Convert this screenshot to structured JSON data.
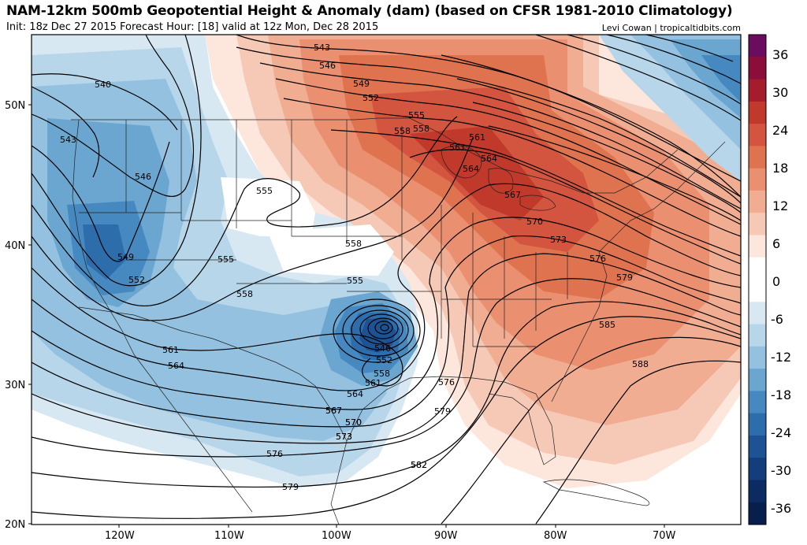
{
  "header": {
    "title": "NAM-12km 500mb Geopotential Height & Anomaly (dam) (based on CFSR 1981-2010 Climatology)",
    "subtitle": "Init: 18z Dec 27 2015   Forecast Hour: [18]   valid at 12z Mon, Dec 28 2015",
    "credit": "Levi Cowan | tropicaltidbits.com"
  },
  "axes": {
    "lon_labels": [
      "120W",
      "110W",
      "100W",
      "90W",
      "80W",
      "70W"
    ],
    "lat_labels": [
      "50N",
      "40N",
      "30N",
      "20N"
    ]
  },
  "colorbar": {
    "labels": [
      "36",
      "30",
      "24",
      "18",
      "12",
      "6",
      "0",
      "-6",
      "-12",
      "-18",
      "-24",
      "-30",
      "-36"
    ],
    "colors": [
      "#6a0d5e",
      "#8b0e3a",
      "#a51d2d",
      "#c0392b",
      "#d3543f",
      "#e0734f",
      "#ea9070",
      "#f1ad92",
      "#f6c9b6",
      "#fde6dc",
      "#ffffff",
      "#ffffff",
      "#d7e8f3",
      "#b7d6ea",
      "#93c1df",
      "#6aa6d0",
      "#4689c0",
      "#2e6dac",
      "#1d5395",
      "#143d7c",
      "#0c2b62",
      "#081f4b"
    ]
  },
  "contour_labels": [
    "540",
    "543",
    "546",
    "549",
    "552",
    "555",
    "558",
    "561",
    "564",
    "567",
    "570",
    "573",
    "576",
    "579",
    "582",
    "585",
    "588",
    "543",
    "546",
    "549",
    "552",
    "555",
    "558",
    "561",
    "564",
    "567",
    "570",
    "573",
    "576",
    "579",
    "555",
    "558",
    "546",
    "552",
    "558",
    "561",
    "564",
    "567",
    "570",
    "573",
    "576",
    "579",
    "582",
    "555",
    "558",
    "561",
    "564"
  ],
  "features": {
    "low_center": "closed-low-texas",
    "map_projection": "lat-lon",
    "anomaly_units": "dam"
  }
}
